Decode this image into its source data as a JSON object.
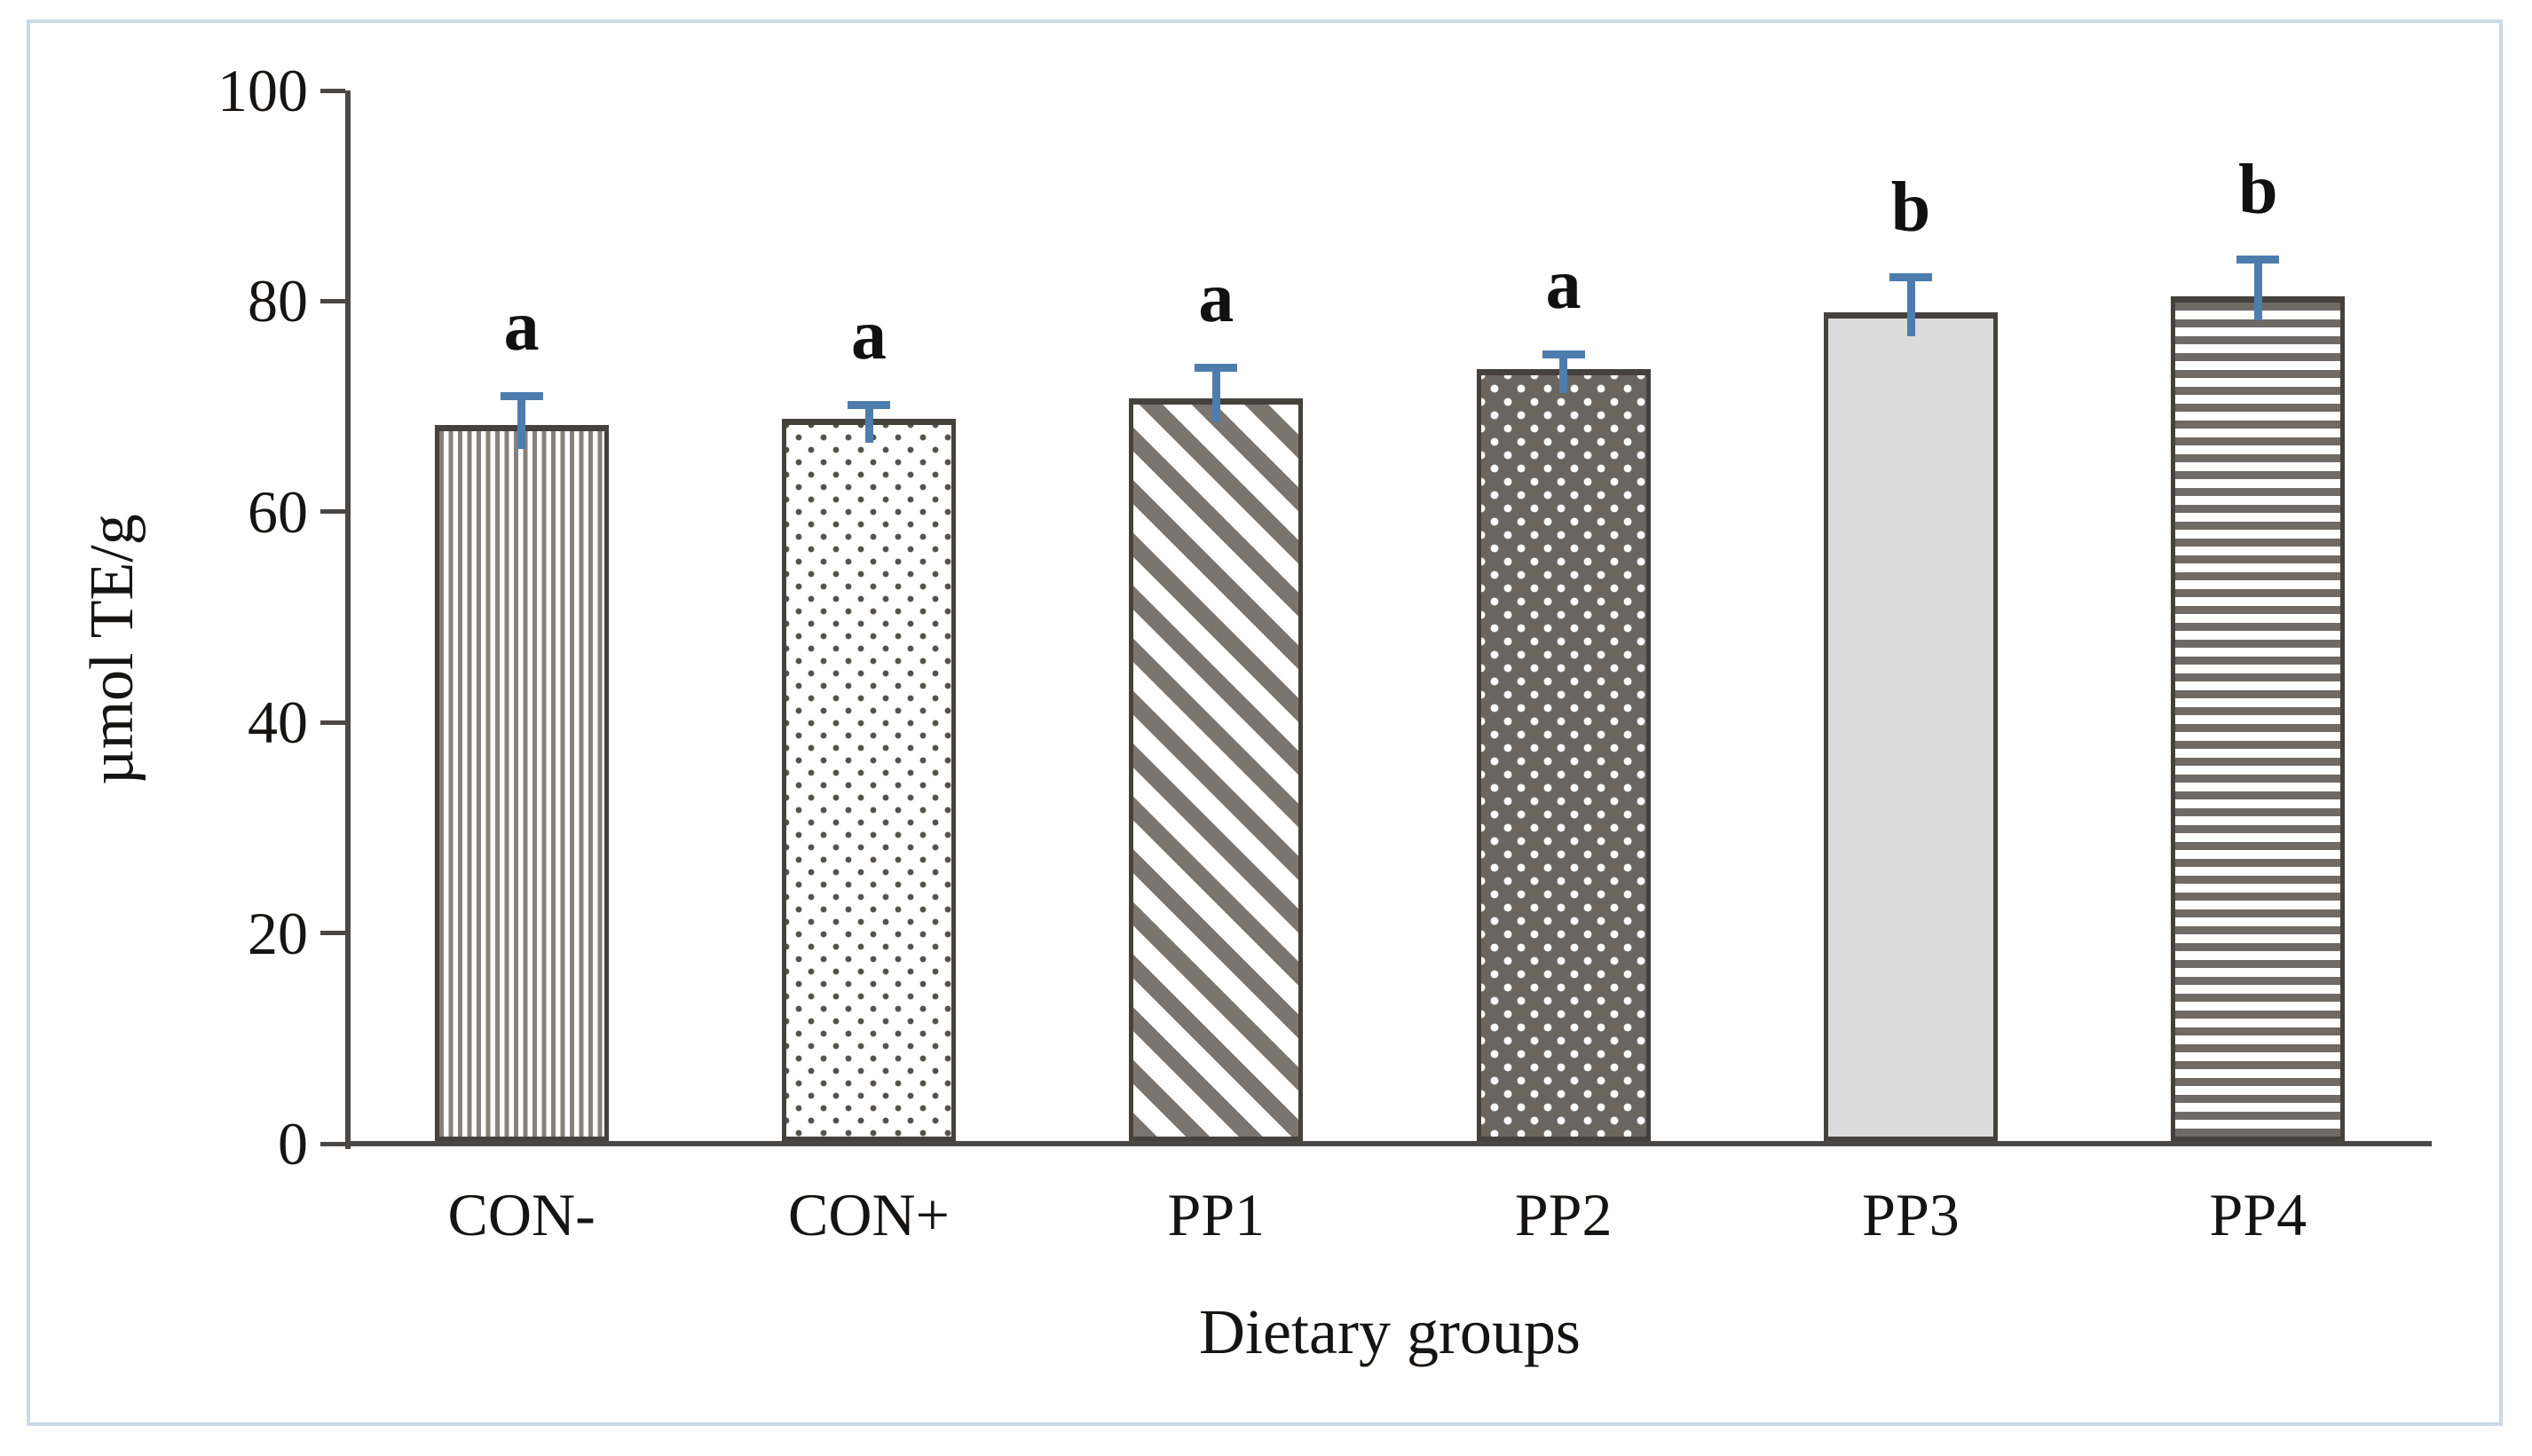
{
  "figure": {
    "y_axis_title": "µmol TE/g",
    "x_axis_title": "Dietary groups",
    "frame_color": "#ccd9e4",
    "axis_color": "#4a4744",
    "background_color": "#ffffff"
  },
  "chart_data": {
    "type": "bar",
    "title": "",
    "xlabel": "Dietary groups",
    "ylabel": "µmol TE/g",
    "categories": [
      "CON-",
      "CON+",
      "PP1",
      "PP2",
      "PP3",
      "PP4"
    ],
    "values": [
      68.0,
      68.6,
      70.5,
      73.3,
      78.7,
      80.2
    ],
    "error_bars_plus": [
      3.0,
      1.6,
      3.2,
      1.7,
      3.6,
      3.8
    ],
    "significance_letters": [
      "a",
      "a",
      "a",
      "a",
      "b",
      "b"
    ],
    "bar_patterns": [
      "vertical-stripes",
      "sparse-dots",
      "diagonal-stripes",
      "dark-dots",
      "solid-gray",
      "horizontal-stripes"
    ],
    "ylim": [
      0,
      100
    ],
    "yticks": [
      0,
      20,
      40,
      60,
      80,
      100
    ],
    "grid": false,
    "legend_position": "none",
    "error_bar_color": "#4d7dad",
    "bar_outline_color": "#45413d",
    "pattern_gray": "#7b756f",
    "dark_fill": "#6b6560",
    "light_fill": "#dcdcdc"
  }
}
